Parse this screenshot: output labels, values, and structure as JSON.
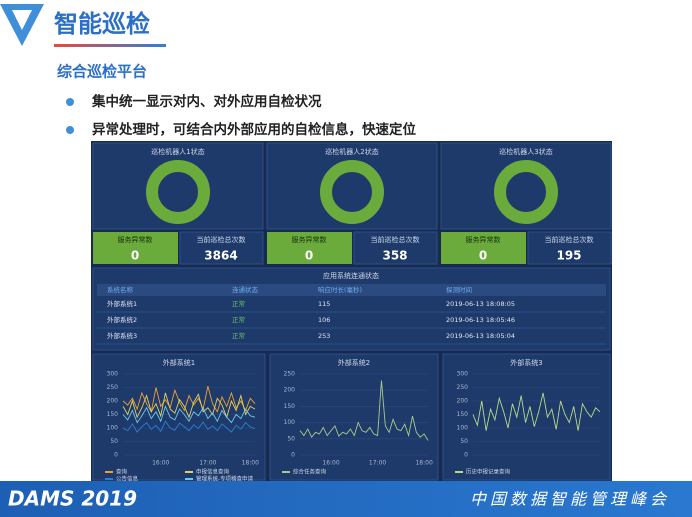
{
  "header": {
    "title": "智能巡检",
    "subtitle": "综合巡检平台",
    "bullets": [
      "集中统一显示对内、对外应用自检状况",
      "异常处理时，可结合内外部应用的自检信息，快速定位"
    ]
  },
  "robots": [
    {
      "title": "巡检机器人1状态",
      "abnormal_label": "服务异常数",
      "abnormal": 0,
      "total_label": "当前巡检总次数",
      "total": 3864
    },
    {
      "title": "巡检机器人2状态",
      "abnormal_label": "服务异常数",
      "abnormal": 0,
      "total_label": "当前巡检总次数",
      "total": 358
    },
    {
      "title": "巡检机器人3状态",
      "abnormal_label": "服务异常数",
      "abnormal": 0,
      "total_label": "当前巡检总次数",
      "total": 195
    }
  ],
  "table": {
    "title": "应用系统连通状态",
    "headers": [
      "系统名称",
      "连通状态",
      "响应时长(毫秒)",
      "探测时间"
    ],
    "rows": [
      [
        "外部系统1",
        "正常",
        115,
        "2019-06-13 18:08:05"
      ],
      [
        "外部系统2",
        "正常",
        106,
        "2019-06-13 18:05:46"
      ],
      [
        "外部系统3",
        "正常",
        253,
        "2019-06-13 18:05:04"
      ]
    ]
  },
  "charts": [
    {
      "type": "line",
      "title": "外部系统1",
      "ylim": [
        0,
        300
      ],
      "yticks": [
        0,
        50,
        100,
        150,
        200,
        250,
        300
      ],
      "categories": [
        null,
        null,
        null,
        null,
        null,
        null,
        null,
        null,
        "16:00",
        null,
        null,
        null,
        null,
        null,
        null,
        null,
        null,
        null,
        "17:00",
        null,
        null,
        null,
        null,
        null,
        null,
        null,
        null,
        "18:00",
        null
      ],
      "series": [
        {
          "name": "查询",
          "color": "#f0a030",
          "values": [
            200,
            185,
            210,
            170,
            230,
            190,
            160,
            250,
            180,
            205,
            175,
            240,
            195,
            165,
            220,
            185,
            210,
            170,
            255,
            190,
            160,
            215,
            180,
            230,
            175,
            200,
            165,
            210,
            190
          ]
        },
        {
          "name": "申报信息查询",
          "color": "#e8d060",
          "values": [
            180,
            150,
            200,
            140,
            175,
            220,
            160,
            190,
            145,
            230,
            170,
            155,
            205,
            180,
            140,
            195,
            225,
            160,
            175,
            150,
            210,
            185,
            140,
            200,
            165,
            220,
            150,
            180,
            170
          ]
        },
        {
          "name": "公告信息",
          "color": "#2a7fd4",
          "values": [
            100,
            90,
            115,
            85,
            105,
            120,
            95,
            110,
            88,
            125,
            100,
            92,
            118,
            105,
            90,
            112,
            98,
            122,
            95,
            108,
            90,
            115,
            100,
            85,
            110,
            96,
            120,
            104,
            98
          ]
        },
        {
          "name": "管理系统-专项稽查申请",
          "color": "#6fc7e8",
          "values": [
            150,
            130,
            165,
            120,
            145,
            175,
            135,
            160,
            125,
            180,
            140,
            130,
            170,
            150,
            125,
            160,
            145,
            175,
            135,
            155,
            125,
            165,
            140,
            120,
            150,
            135,
            170,
            145,
            140
          ]
        }
      ]
    },
    {
      "type": "line",
      "title": "外部系统2",
      "ylim": [
        0,
        250
      ],
      "yticks": [
        0,
        50,
        100,
        150,
        200,
        250
      ],
      "categories": [
        null,
        null,
        null,
        null,
        null,
        null,
        null,
        null,
        "16:00",
        null,
        null,
        null,
        null,
        null,
        null,
        null,
        null,
        null,
        null,
        null,
        "17:00",
        null,
        null,
        null,
        null,
        null,
        null,
        null,
        null,
        null,
        null,
        null,
        "18:00",
        null
      ],
      "series": [
        {
          "name": "综合任务查询",
          "color": "#a9c98a",
          "values": [
            75,
            60,
            80,
            55,
            70,
            65,
            85,
            60,
            75,
            90,
            58,
            70,
            65,
            80,
            60,
            100,
            75,
            70,
            85,
            65,
            60,
            230,
            90,
            70,
            110,
            80,
            75,
            95,
            60,
            120,
            70,
            55,
            65,
            45
          ]
        }
      ]
    },
    {
      "type": "line",
      "title": "外部系统3",
      "ylim": [
        0,
        300
      ],
      "yticks": [
        0,
        50,
        100,
        150,
        200,
        250,
        300
      ],
      "series": [
        {
          "name": "历史申报记录查询",
          "color": "#b8d88a",
          "values": [
            150,
            110,
            200,
            90,
            170,
            130,
            210,
            160,
            100,
            190,
            140,
            220,
            120,
            180,
            105,
            160,
            230,
            140,
            170,
            95,
            200,
            150,
            120,
            180,
            90,
            190,
            160,
            140,
            175,
            160
          ]
        }
      ]
    }
  ],
  "footer": {
    "brand": "DAMS 2019",
    "event": "中国数据智能管理峰会"
  }
}
